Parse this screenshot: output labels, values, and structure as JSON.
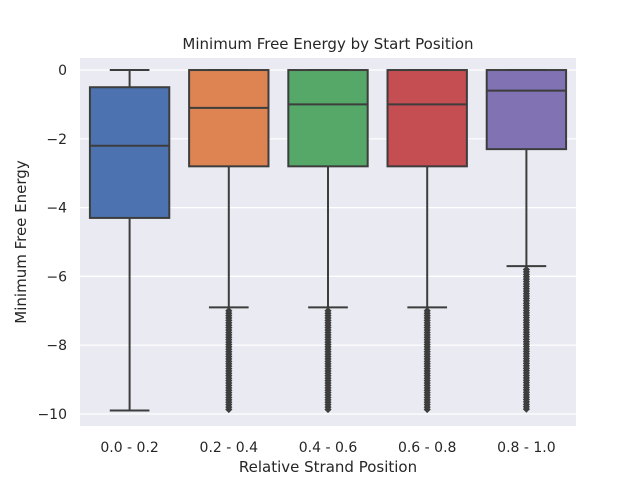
{
  "chart_data": {
    "type": "box",
    "title": "Minimum Free Energy by Start Position",
    "xlabel": "Relative Strand Position",
    "ylabel": "Minimum Free Energy",
    "ylim": [
      -10.35,
      0.35
    ],
    "yticks": [
      0,
      -2,
      -4,
      -6,
      -8,
      -10
    ],
    "ytick_labels": [
      "0",
      "−2",
      "−4",
      "−6",
      "−8",
      "−10"
    ],
    "grid": true,
    "categories": [
      "0.0 - 0.2",
      "0.2 - 0.4",
      "0.4 - 0.6",
      "0.6 - 0.8",
      "0.8 - 1.0"
    ],
    "boxes": [
      {
        "category": "0.0 - 0.2",
        "color": "#4c72b0",
        "whisker_high": 0.0,
        "q3": -0.5,
        "median": -2.2,
        "q1": -4.3,
        "whisker_low": -9.9,
        "outliers_from": null,
        "outliers_to": null
      },
      {
        "category": "0.2 - 0.4",
        "color": "#dd8452",
        "whisker_high": 0.0,
        "q3": 0.0,
        "median": -1.1,
        "q1": -2.8,
        "whisker_low": -6.9,
        "outliers_from": -7.0,
        "outliers_to": -9.9
      },
      {
        "category": "0.4 - 0.6",
        "color": "#55a868",
        "whisker_high": 0.0,
        "q3": 0.0,
        "median": -1.0,
        "q1": -2.8,
        "whisker_low": -6.9,
        "outliers_from": -7.0,
        "outliers_to": -9.9
      },
      {
        "category": "0.6 - 0.8",
        "color": "#c44e52",
        "whisker_high": 0.0,
        "q3": 0.0,
        "median": -1.0,
        "q1": -2.8,
        "whisker_low": -6.9,
        "outliers_from": -7.0,
        "outliers_to": -9.9
      },
      {
        "category": "0.8 - 1.0",
        "color": "#8172b3",
        "whisker_high": 0.0,
        "q3": 0.0,
        "median": -0.6,
        "q1": -2.3,
        "whisker_low": -5.7,
        "outliers_from": -5.8,
        "outliers_to": -9.9
      }
    ],
    "colors": {
      "plot_background": "#eaeaf2",
      "gridline": "#ffffff",
      "box_edge": "#3d3d3d"
    }
  }
}
